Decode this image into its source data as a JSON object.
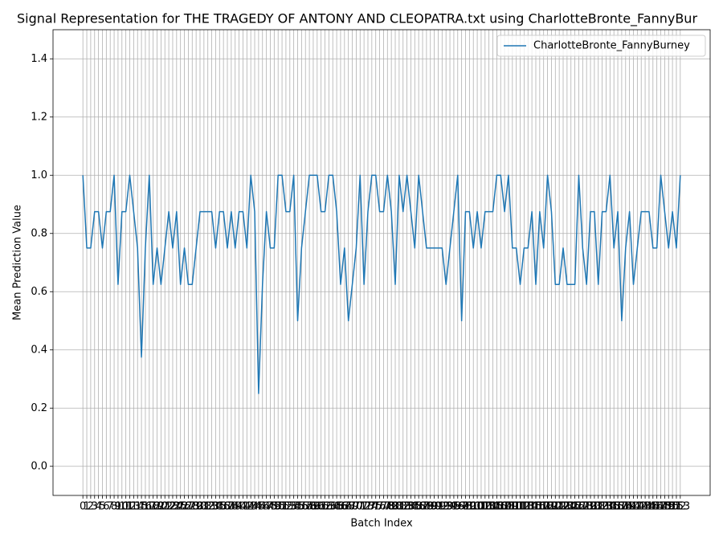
{
  "chart_data": {
    "type": "line",
    "title": "Signal Representation for THE TRAGEDY OF ANTONY AND CLEOPATRA.txt using CharlotteBronte_FannyBur",
    "xlabel": "Batch Index",
    "ylabel": "Mean Prediction Value",
    "x": [
      0,
      1,
      2,
      3,
      4,
      5,
      6,
      7,
      8,
      9,
      10,
      11,
      12,
      13,
      14,
      15,
      16,
      17,
      18,
      19,
      20,
      21,
      22,
      23,
      24,
      25,
      26,
      27,
      28,
      29,
      30,
      31,
      32,
      33,
      34,
      35,
      36,
      37,
      38,
      39,
      40,
      41,
      42,
      43,
      44,
      45,
      46,
      47,
      48,
      49,
      50,
      51,
      52,
      53,
      54,
      55,
      56,
      57,
      58,
      59,
      60,
      61,
      62,
      63,
      64,
      65,
      66,
      67,
      68,
      69,
      70,
      71,
      72,
      73,
      74,
      75,
      76,
      77,
      78,
      79,
      80,
      81,
      82,
      83,
      84,
      85,
      86,
      87,
      88,
      89,
      90,
      91,
      92,
      93,
      94,
      95,
      96,
      97,
      98,
      99,
      100,
      101,
      102,
      103,
      104,
      105,
      106,
      107,
      108,
      109,
      110,
      111,
      112,
      113,
      114,
      115,
      116,
      117,
      118,
      119,
      120,
      121,
      122,
      123,
      124,
      125,
      126,
      127,
      128,
      129,
      130,
      131,
      132,
      133,
      134,
      135,
      136,
      137,
      138,
      139,
      140,
      141,
      142,
      143,
      144,
      145,
      146,
      147,
      148,
      149,
      150,
      151,
      152,
      153
    ],
    "series": [
      {
        "name": "CharlotteBronte_FannyBurney",
        "color": "#1f77b4",
        "values": [
          1.0,
          0.75,
          0.75,
          0.875,
          0.875,
          0.75,
          0.875,
          0.875,
          1.0,
          0.625,
          0.875,
          0.875,
          1.0,
          0.875,
          0.75,
          0.375,
          0.75,
          1.0,
          0.625,
          0.75,
          0.625,
          0.75,
          0.875,
          0.75,
          0.875,
          0.625,
          0.75,
          0.625,
          0.625,
          0.75,
          0.875,
          0.875,
          0.875,
          0.875,
          0.75,
          0.875,
          0.875,
          0.75,
          0.875,
          0.75,
          0.875,
          0.875,
          0.75,
          1.0,
          0.875,
          0.25,
          0.625,
          0.875,
          0.75,
          0.75,
          1.0,
          1.0,
          0.875,
          0.875,
          1.0,
          0.5,
          0.75,
          0.875,
          1.0,
          1.0,
          1.0,
          0.875,
          0.875,
          1.0,
          1.0,
          0.875,
          0.625,
          0.75,
          0.5,
          0.625,
          0.75,
          1.0,
          0.625,
          0.875,
          1.0,
          1.0,
          0.875,
          0.875,
          1.0,
          0.875,
          0.625,
          1.0,
          0.875,
          1.0,
          0.875,
          0.75,
          1.0,
          0.875,
          0.75,
          0.75,
          0.75,
          0.75,
          0.75,
          0.625,
          0.75,
          0.875,
          1.0,
          0.5,
          0.875,
          0.875,
          0.75,
          0.875,
          0.75,
          0.875,
          0.875,
          0.875,
          1.0,
          1.0,
          0.875,
          1.0,
          0.75,
          0.75,
          0.625,
          0.75,
          0.75,
          0.875,
          0.625,
          0.875,
          0.75,
          1.0,
          0.875,
          0.625,
          0.625,
          0.75,
          0.625,
          0.625,
          0.625,
          1.0,
          0.75,
          0.625,
          0.875,
          0.875,
          0.625,
          0.875,
          0.875,
          1.0,
          0.75,
          0.875,
          0.5,
          0.75,
          0.875,
          0.625,
          0.75,
          0.875,
          0.875,
          0.875,
          0.75,
          0.75,
          1.0,
          0.875,
          0.75,
          0.875,
          0.75,
          1.0
        ]
      }
    ],
    "xlim": [
      -7.65,
      160.65
    ],
    "xticks": [
      0,
      1,
      2,
      3,
      4,
      5,
      6,
      7,
      8,
      9,
      10,
      11,
      12,
      13,
      14,
      15,
      16,
      17,
      18,
      19,
      20,
      21,
      22,
      23,
      24,
      25,
      26,
      27,
      28,
      29,
      30,
      31,
      32,
      33,
      34,
      35,
      36,
      37,
      38,
      39,
      40,
      41,
      42,
      43,
      44,
      45,
      46,
      47,
      48,
      49,
      50,
      51,
      52,
      53,
      54,
      55,
      56,
      57,
      58,
      59,
      60,
      61,
      62,
      63,
      64,
      65,
      66,
      67,
      68,
      69,
      70,
      71,
      72,
      73,
      74,
      75,
      76,
      77,
      78,
      79,
      80,
      81,
      82,
      83,
      84,
      85,
      86,
      87,
      88,
      89,
      90,
      91,
      92,
      93,
      94,
      95,
      96,
      97,
      98,
      99,
      100,
      101,
      102,
      103,
      104,
      105,
      106,
      107,
      108,
      109,
      110,
      111,
      112,
      113,
      114,
      115,
      116,
      117,
      118,
      119,
      120,
      121,
      122,
      123,
      124,
      125,
      126,
      127,
      128,
      129,
      130,
      131,
      132,
      133,
      134,
      135,
      136,
      137,
      138,
      139,
      140,
      141,
      142,
      143,
      144,
      145,
      146,
      147,
      148,
      149,
      150,
      151,
      152,
      153
    ],
    "ylim": [
      -0.1,
      1.5
    ],
    "yticks": [
      {
        "value": 0.0,
        "label": "0.0"
      },
      0.2,
      0.4,
      0.6,
      0.8,
      {
        "value": 1.0,
        "label": "1.0"
      },
      1.2,
      1.4
    ],
    "grid": true,
    "legend": "upper right"
  }
}
